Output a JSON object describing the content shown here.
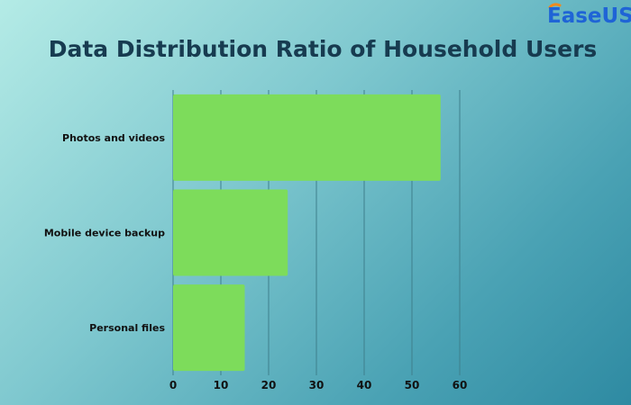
{
  "brand": {
    "logo_text": "EaseUS",
    "accent": "#1f64d6"
  },
  "chart_data": {
    "type": "bar",
    "orientation": "horizontal",
    "title": "Data Distribution Ratio of Household Users",
    "categories": [
      "Photos and videos",
      "Mobile device backup",
      "Personal files"
    ],
    "values": [
      56,
      24,
      15
    ],
    "xlim": [
      0,
      60
    ],
    "xticks": [
      0,
      10,
      20,
      30,
      40,
      50,
      60
    ],
    "grid": true,
    "bar_color": "#7ddc5b",
    "grid_color": "#3e7f8c",
    "legend": "none"
  }
}
